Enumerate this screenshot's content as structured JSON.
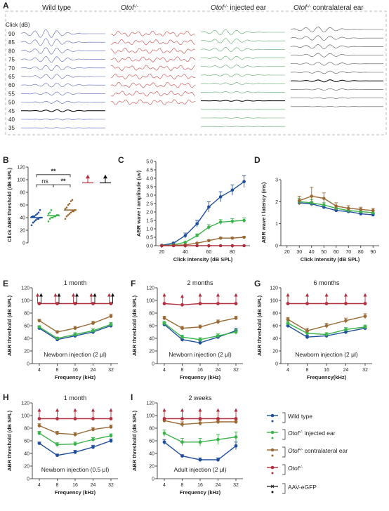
{
  "panel_letters": [
    "A",
    "B",
    "C",
    "D",
    "E",
    "F",
    "G",
    "H",
    "I"
  ],
  "panelA": {
    "click_label": "Click (dB)",
    "levels": [
      "90",
      "85",
      "80",
      "75",
      "70",
      "65",
      "60",
      "55",
      "50",
      "45",
      "40",
      "35"
    ],
    "groups": [
      {
        "title": "Wild type",
        "title_parts": null,
        "color": "#5b63b8"
      },
      {
        "title": "Otof",
        "sup": "-/-",
        "suffix": "",
        "color": "#cc4444"
      },
      {
        "title": "Otof",
        "sup": "-/-",
        "suffix": " injected ear",
        "color": "#5aa86a"
      },
      {
        "title": "Otof",
        "sup": "-/-",
        "suffix": " contralateral ear",
        "color": "#555555"
      }
    ]
  },
  "colors": {
    "wild_type": "#1f4e9c",
    "injected": "#3cb44b",
    "contralateral": "#9a6a35",
    "otof": "#b03040",
    "aav": "#111111"
  },
  "legend": {
    "items": [
      {
        "label": "Wild type",
        "italic_prefix": "",
        "sup": "",
        "color": "#1f4e9c"
      },
      {
        "label": " injected ear",
        "italic_prefix": "Otof",
        "sup": "-/-",
        "color": "#3cb44b"
      },
      {
        "label": " contralateral ear",
        "italic_prefix": "Otof",
        "sup": "-/-",
        "color": "#9a6a35"
      },
      {
        "label": "",
        "italic_prefix": "Otof",
        "sup": "-/-",
        "color": "#b03040"
      },
      {
        "label": "AAV-eGFP",
        "italic_prefix": "",
        "sup": "",
        "color": "#111111"
      }
    ]
  },
  "chart_data": [
    {
      "id": "B",
      "type": "scatter",
      "ylabel": "Click ABR threshold (dB SPL)",
      "ylim": [
        0,
        120
      ],
      "yticks": [
        0,
        20,
        40,
        60,
        80,
        100,
        120
      ],
      "groups": [
        {
          "name": "Wild type",
          "mean": 40,
          "points": [
            28,
            32,
            34,
            36,
            38,
            38,
            40,
            40,
            41,
            42,
            42,
            44,
            46,
            48,
            52
          ]
        },
        {
          "name": "Otof-/- injected ear",
          "mean": 43,
          "points": [
            34,
            38,
            40,
            40,
            42,
            42,
            44,
            44,
            46,
            48,
            52
          ]
        },
        {
          "name": "Otof-/- contralateral ear",
          "mean": 52,
          "points": [
            38,
            42,
            44,
            46,
            48,
            50,
            50,
            52,
            54,
            56,
            60,
            62,
            66,
            68
          ]
        },
        {
          "name": "Otof-/-",
          "mean": null,
          "points": []
        },
        {
          "name": "AAV-eGFP",
          "mean": null,
          "points": []
        }
      ],
      "annotations": [
        "**",
        "ns",
        "**"
      ]
    },
    {
      "id": "C",
      "type": "line",
      "xlabel": "Click intensity (dB SPL)",
      "ylabel": "ABR wave I amplitude (uv)",
      "x": [
        20,
        30,
        40,
        50,
        60,
        70,
        80,
        90
      ],
      "xlim": [
        15,
        95
      ],
      "xticks": [
        20,
        40,
        60,
        80
      ],
      "ylim": [
        0,
        5
      ],
      "yticks": [
        "0.0",
        "0.5",
        "1.0",
        "1.5",
        "2.0",
        "2.5",
        "3.0",
        "3.5",
        "4.0",
        "4.5",
        "5.0"
      ],
      "series": [
        {
          "name": "Wild type",
          "values": [
            0.02,
            0.15,
            0.6,
            1.3,
            2.3,
            2.9,
            3.3,
            3.8
          ],
          "err": [
            0.02,
            0.05,
            0.15,
            0.2,
            0.3,
            0.3,
            0.3,
            0.35
          ]
        },
        {
          "name": "Otof-/- injected ear",
          "values": [
            0.01,
            0.05,
            0.2,
            0.6,
            1.1,
            1.4,
            1.45,
            1.5
          ],
          "err": [
            0.01,
            0.03,
            0.05,
            0.1,
            0.15,
            0.15,
            0.15,
            0.15
          ]
        },
        {
          "name": "Otof-/- contralateral ear",
          "values": [
            0.0,
            0.02,
            0.05,
            0.15,
            0.3,
            0.45,
            0.45,
            0.5
          ],
          "err": [
            0,
            0.01,
            0.02,
            0.03,
            0.05,
            0.05,
            0.05,
            0.05
          ]
        },
        {
          "name": "Otof-/-",
          "values": [
            0.0,
            0.0,
            0.0,
            0.0,
            0.0,
            0.0,
            0.0,
            0.0
          ],
          "err": [
            0,
            0,
            0,
            0,
            0,
            0,
            0,
            0
          ]
        }
      ]
    },
    {
      "id": "D",
      "type": "line",
      "xlabel": "Click intensity (dB SPL)",
      "ylabel": "ABR wave I latency (ms)",
      "x": [
        30,
        40,
        50,
        60,
        70,
        80,
        90
      ],
      "xlim": [
        15,
        95
      ],
      "xticks": [
        20,
        30,
        40,
        50,
        60,
        70,
        80,
        90
      ],
      "ylim": [
        0,
        3
      ],
      "yticks": [
        0,
        1,
        2,
        3
      ],
      "series": [
        {
          "name": "Wild type",
          "values": [
            1.95,
            1.9,
            1.75,
            1.6,
            1.55,
            1.45,
            1.4
          ],
          "err": [
            0.1,
            0.1,
            0.08,
            0.06,
            0.06,
            0.05,
            0.05
          ]
        },
        {
          "name": "Otof-/- injected ear",
          "values": [
            2.0,
            1.95,
            1.85,
            1.7,
            1.6,
            1.55,
            1.5
          ],
          "err": [
            0.15,
            0.15,
            0.1,
            0.1,
            0.08,
            0.08,
            0.08
          ]
        },
        {
          "name": "Otof-/- contralateral ear",
          "values": [
            2.05,
            2.25,
            2.15,
            1.8,
            1.7,
            1.65,
            1.6
          ],
          "err": [
            0.2,
            0.4,
            0.25,
            0.15,
            0.12,
            0.1,
            0.1
          ]
        }
      ]
    },
    {
      "id": "E",
      "type": "line",
      "title": "1 month",
      "note": "Newborn injection (2 μl)",
      "xlabel": "Frequency (kHz)",
      "ylabel": "ABR threshold (dB SPL)",
      "categories": [
        "4",
        "8",
        "16",
        "24",
        "32"
      ],
      "ylim": [
        0,
        120
      ],
      "yticks": [
        0,
        20,
        40,
        60,
        80,
        100,
        120
      ],
      "arrows": {
        "red": true,
        "black": true
      },
      "series": [
        {
          "name": "Wild type",
          "values": [
            56,
            38,
            44,
            50,
            60
          ],
          "err": [
            2,
            2,
            3,
            3,
            3
          ]
        },
        {
          "name": "Otof-/- injected ear",
          "values": [
            58,
            40,
            46,
            52,
            62
          ],
          "err": [
            2,
            2,
            3,
            3,
            3
          ]
        },
        {
          "name": "Otof-/- contralateral ear",
          "values": [
            68,
            50,
            56,
            64,
            75
          ],
          "err": [
            2,
            2,
            3,
            3,
            3
          ]
        },
        {
          "name": "Otof-/-",
          "values": [
            95,
            95,
            95,
            95,
            95
          ],
          "err": [
            0,
            0,
            0,
            0,
            0
          ]
        }
      ]
    },
    {
      "id": "F",
      "type": "line",
      "title": "2 months",
      "note": "Newborn injection (2 μl)",
      "xlabel": "Frequency (kHz)",
      "ylabel": "ABR threshold (dB SPL)",
      "categories": [
        "4",
        "8",
        "16",
        "24",
        "32"
      ],
      "ylim": [
        0,
        120
      ],
      "yticks": [
        0,
        20,
        40,
        60,
        80,
        100,
        120
      ],
      "arrows": {
        "red": true,
        "black": false
      },
      "series": [
        {
          "name": "Wild type",
          "values": [
            62,
            38,
            33,
            42,
            52
          ],
          "err": [
            3,
            3,
            3,
            3,
            4
          ]
        },
        {
          "name": "Otof-/- injected ear",
          "values": [
            64,
            42,
            38,
            44,
            50
          ],
          "err": [
            3,
            3,
            3,
            3,
            4
          ]
        },
        {
          "name": "Otof-/- contralateral ear",
          "values": [
            72,
            56,
            58,
            66,
            72
          ],
          "err": [
            3,
            3,
            3,
            3,
            3
          ]
        },
        {
          "name": "Otof-/-",
          "values": [
            95,
            93,
            95,
            95,
            95
          ],
          "err": [
            0,
            0,
            0,
            0,
            0
          ]
        }
      ]
    },
    {
      "id": "G",
      "type": "line",
      "title": "6 months",
      "note": "Newborn injection (2 μl)",
      "xlabel": "Frequency(kHz)",
      "ylabel": "ABR threshold (dB SPL)",
      "categories": [
        "4",
        "8",
        "16",
        "24",
        "32"
      ],
      "ylim": [
        0,
        120
      ],
      "yticks": [
        0,
        20,
        40,
        60,
        80,
        100,
        120
      ],
      "arrows": {
        "red": true,
        "black": false
      },
      "series": [
        {
          "name": "Wild type",
          "values": [
            60,
            42,
            44,
            50,
            56
          ],
          "err": [
            3,
            3,
            3,
            3,
            3
          ]
        },
        {
          "name": "Otof-/- injected ear",
          "values": [
            64,
            48,
            46,
            54,
            58
          ],
          "err": [
            3,
            3,
            3,
            3,
            3
          ]
        },
        {
          "name": "Otof-/- contralateral ear",
          "values": [
            70,
            52,
            60,
            68,
            75
          ],
          "err": [
            3,
            4,
            4,
            4,
            4
          ]
        },
        {
          "name": "Otof-/-",
          "values": [
            95,
            95,
            95,
            95,
            95
          ],
          "err": [
            0,
            0,
            0,
            0,
            0
          ]
        }
      ]
    },
    {
      "id": "H",
      "type": "line",
      "title": "1 month",
      "note": "Newborn injection (0.5 μl)",
      "xlabel": "Frequency (kHz)",
      "ylabel": "ABR threshold (dB SPL)",
      "categories": [
        "4",
        "8",
        "16",
        "24",
        "32"
      ],
      "ylim": [
        0,
        120
      ],
      "yticks": [
        0,
        20,
        40,
        60,
        80,
        100,
        120
      ],
      "arrows": {
        "red": true,
        "black": false
      },
      "series": [
        {
          "name": "Wild type",
          "values": [
            56,
            37,
            42,
            50,
            60
          ],
          "err": [
            2,
            2,
            3,
            3,
            3
          ]
        },
        {
          "name": "Otof-/- injected ear",
          "values": [
            72,
            54,
            55,
            62,
            68
          ],
          "err": [
            3,
            3,
            3,
            3,
            3
          ]
        },
        {
          "name": "Otof-/- contralateral ear",
          "values": [
            84,
            72,
            70,
            78,
            82
          ],
          "err": [
            3,
            3,
            3,
            3,
            3
          ]
        },
        {
          "name": "Otof-/-",
          "values": [
            95,
            95,
            95,
            95,
            95
          ],
          "err": [
            0,
            0,
            0,
            0,
            0
          ]
        }
      ]
    },
    {
      "id": "I",
      "type": "line",
      "title": "2 weeks",
      "note": "Adult injection (2 μl)",
      "xlabel": "Frequency (kHz)",
      "ylabel": "ABR threshold (dB SPL)",
      "categories": [
        "4",
        "8",
        "16",
        "24",
        "32"
      ],
      "ylim": [
        0,
        120
      ],
      "yticks": [
        0,
        20,
        40,
        60,
        80,
        100,
        120
      ],
      "arrows": {
        "red": true,
        "black": false
      },
      "series": [
        {
          "name": "Wild type",
          "values": [
            58,
            36,
            30,
            30,
            52
          ],
          "err": [
            4,
            2,
            3,
            3,
            6
          ]
        },
        {
          "name": "Otof-/- injected ear",
          "values": [
            72,
            58,
            58,
            62,
            66
          ],
          "err": [
            5,
            6,
            6,
            8,
            8
          ]
        },
        {
          "name": "Otof-/- contralateral ear",
          "values": [
            92,
            86,
            88,
            90,
            90
          ],
          "err": [
            3,
            4,
            4,
            3,
            3
          ]
        },
        {
          "name": "Otof-/-",
          "values": [
            95,
            95,
            95,
            95,
            95
          ],
          "err": [
            0,
            0,
            0,
            0,
            0
          ]
        }
      ]
    }
  ]
}
